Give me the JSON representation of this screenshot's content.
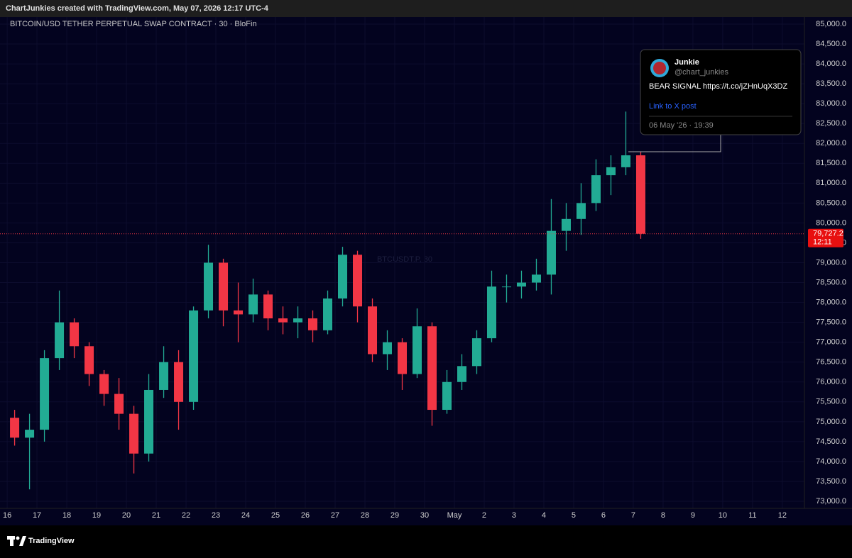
{
  "header": "ChartJunkies created with TradingView.com, May 07, 2026 12:17 UTC-4",
  "footer": "TradingView",
  "post": {
    "name": "Junkie",
    "handle": "@chart_junkies",
    "text": "BEAR SIGNAL https://t.co/jZHnUqX3DZ",
    "link": "Link to X post",
    "date": "06 May '26 · 19:39"
  },
  "chart_data": {
    "type": "candlestick",
    "title": "BITCOIN/USD TETHER PERPETUAL SWAP CONTRACT · 30 · BloFin",
    "watermark": "BTCUSDT.P, 30",
    "up_color": "#22ab94",
    "down_color": "#f23645",
    "grid": true,
    "x": [
      0.25,
      0.75,
      1.25,
      1.75,
      2.25,
      2.75,
      3.25,
      3.75,
      4.25,
      4.75,
      5.25,
      5.75,
      6.25,
      6.75,
      7.25,
      7.75,
      8.25,
      8.75,
      9.25,
      9.75,
      10.25,
      10.75,
      11.25,
      11.75,
      12.25,
      12.75,
      13.25,
      13.75,
      14.25,
      14.75,
      15.25,
      15.75,
      16.25,
      16.75,
      17.25,
      17.75,
      18.25,
      18.75,
      19.25,
      19.75,
      20.25,
      20.75,
      21.25
    ],
    "open": [
      75100,
      74600,
      74800,
      76600,
      77500,
      76900,
      76200,
      75700,
      75200,
      74200,
      75800,
      76500,
      75500,
      77800,
      79000,
      77800,
      77700,
      78200,
      77600,
      77500,
      77600,
      77300,
      78100,
      79200,
      77900,
      76700,
      77000,
      76200,
      77400,
      75300,
      76000,
      76400,
      77100,
      78400,
      78400,
      78500,
      78700,
      79800,
      80100,
      80500,
      81200,
      81400,
      81700
    ],
    "high": [
      75300,
      75200,
      76800,
      78300,
      77600,
      77000,
      76300,
      76100,
      75400,
      76200,
      76900,
      76800,
      77900,
      79450,
      79100,
      78500,
      78600,
      78300,
      77900,
      77900,
      77800,
      78300,
      79400,
      79300,
      78100,
      77300,
      77100,
      77850,
      77500,
      76300,
      76700,
      77300,
      78800,
      78700,
      78800,
      79100,
      80600,
      80500,
      81000,
      81600,
      81700,
      82800,
      81800
    ],
    "low": [
      74400,
      73300,
      74500,
      76300,
      76600,
      75900,
      75400,
      74800,
      73700,
      74000,
      75600,
      74800,
      75300,
      77600,
      77400,
      77000,
      77500,
      77300,
      77200,
      77100,
      77000,
      77200,
      77900,
      77500,
      76500,
      76300,
      75800,
      76100,
      74900,
      75200,
      75800,
      76200,
      77000,
      78000,
      78100,
      78300,
      78200,
      79300,
      79700,
      80300,
      80700,
      81200,
      79600
    ],
    "close": [
      74600,
      74800,
      76600,
      77500,
      76900,
      76200,
      75700,
      75200,
      74200,
      75800,
      76500,
      75500,
      77800,
      79000,
      77800,
      77700,
      78200,
      77600,
      77500,
      77600,
      77300,
      78100,
      79200,
      77900,
      76700,
      77000,
      76200,
      77400,
      75300,
      76000,
      76400,
      77100,
      78400,
      78400,
      78500,
      78700,
      79800,
      80100,
      80500,
      81200,
      81400,
      81700,
      79727.2
    ],
    "last_price": 79727.2,
    "last_price_label": "79,727.2",
    "countdown": "12:11",
    "xlim": [
      -0.24,
      26.74
    ],
    "xticks": [
      {
        "value": 0,
        "label": "16"
      },
      {
        "value": 1,
        "label": "17"
      },
      {
        "value": 2,
        "label": "18"
      },
      {
        "value": 3,
        "label": "19"
      },
      {
        "value": 4,
        "label": "20"
      },
      {
        "value": 5,
        "label": "21"
      },
      {
        "value": 6,
        "label": "22"
      },
      {
        "value": 7,
        "label": "23"
      },
      {
        "value": 8,
        "label": "24"
      },
      {
        "value": 9,
        "label": "25"
      },
      {
        "value": 10,
        "label": "26"
      },
      {
        "value": 11,
        "label": "27"
      },
      {
        "value": 12,
        "label": "28"
      },
      {
        "value": 13,
        "label": "29"
      },
      {
        "value": 14,
        "label": "30"
      },
      {
        "value": 15,
        "label": "May"
      },
      {
        "value": 16,
        "label": "2"
      },
      {
        "value": 17,
        "label": "3"
      },
      {
        "value": 18,
        "label": "4"
      },
      {
        "value": 19,
        "label": "5"
      },
      {
        "value": 20,
        "label": "6"
      },
      {
        "value": 21,
        "label": "7"
      },
      {
        "value": 22,
        "label": "8"
      },
      {
        "value": 23,
        "label": "9"
      },
      {
        "value": 24,
        "label": "10"
      },
      {
        "value": 25,
        "label": "11"
      },
      {
        "value": 26,
        "label": "12"
      }
    ],
    "ylim": [
      72822,
      85178
    ],
    "yticks": [
      {
        "value": 73000,
        "label": "73,000.0"
      },
      {
        "value": 73500,
        "label": "73,500.0"
      },
      {
        "value": 74000,
        "label": "74,000.0"
      },
      {
        "value": 74500,
        "label": "74,500.0"
      },
      {
        "value": 75000,
        "label": "75,000.0"
      },
      {
        "value": 75500,
        "label": "75,500.0"
      },
      {
        "value": 76000,
        "label": "76,000.0"
      },
      {
        "value": 76500,
        "label": "76,500.0"
      },
      {
        "value": 77000,
        "label": "77,000.0"
      },
      {
        "value": 77500,
        "label": "77,500.0"
      },
      {
        "value": 78000,
        "label": "78,000.0"
      },
      {
        "value": 78500,
        "label": "78,500.0"
      },
      {
        "value": 79000,
        "label": "79,000.0"
      },
      {
        "value": 79500,
        "label": "79,500.0"
      },
      {
        "value": 80000,
        "label": "80,000.0"
      },
      {
        "value": 80500,
        "label": "80,500.0"
      },
      {
        "value": 81000,
        "label": "81,000.0"
      },
      {
        "value": 81500,
        "label": "81,500.0"
      },
      {
        "value": 82000,
        "label": "82,000.0"
      },
      {
        "value": 82500,
        "label": "82,500.0"
      },
      {
        "value": 83000,
        "label": "83,000.0"
      },
      {
        "value": 83500,
        "label": "83,500.0"
      },
      {
        "value": 84000,
        "label": "84,000.0"
      },
      {
        "value": 84500,
        "label": "84,500.0"
      },
      {
        "value": 85000,
        "label": "85,000.0"
      }
    ]
  }
}
